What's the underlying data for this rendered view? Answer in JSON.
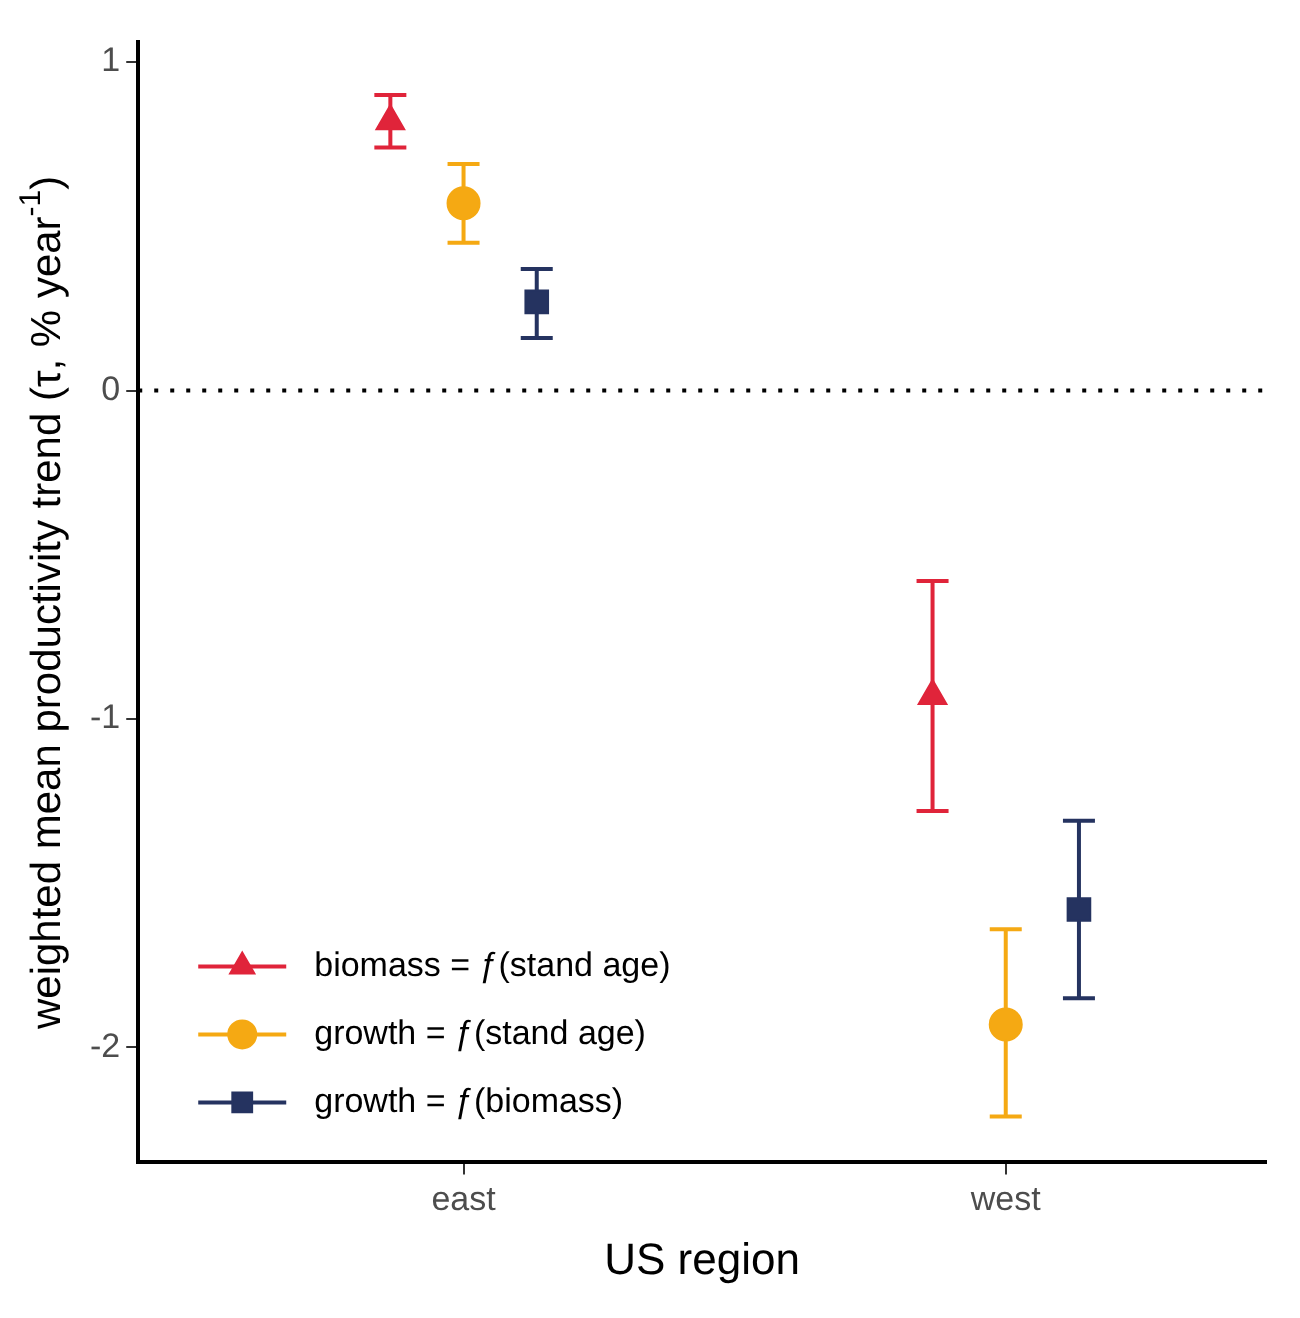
{
  "chart_data": {
    "type": "scatter",
    "xlabel": "US region",
    "ylabel": "weighted mean productivity trend (τ, % year$^{-1}$)",
    "categories": [
      "east",
      "west"
    ],
    "series": [
      {
        "name": "biomass = ƒ(stand age)",
        "color": "#e0243a",
        "marker": "triangle",
        "values": [
          0.82,
          -0.93
        ],
        "errors": [
          [
            0.74,
            0.9
          ],
          [
            -1.28,
            -0.58
          ]
        ]
      },
      {
        "name": "growth = ƒ(stand age)",
        "color": "#f5a913",
        "marker": "circle",
        "values": [
          0.57,
          -1.93
        ],
        "errors": [
          [
            0.45,
            0.69
          ],
          [
            -2.21,
            -1.64
          ]
        ]
      },
      {
        "name": "growth = ƒ(biomass)",
        "color": "#253360",
        "marker": "square",
        "values": [
          0.27,
          -1.58
        ],
        "errors": [
          [
            0.16,
            0.37
          ],
          [
            -1.85,
            -1.31
          ]
        ]
      }
    ],
    "ylim": [
      -2.35,
      1.06
    ],
    "yticks": [
      -2,
      -1,
      0,
      1
    ],
    "ref_lines": [
      {
        "axis": "y",
        "value": 0,
        "line_style": "dotted",
        "color": "#000000"
      }
    ],
    "grid": false,
    "legend": "bottom left"
  }
}
